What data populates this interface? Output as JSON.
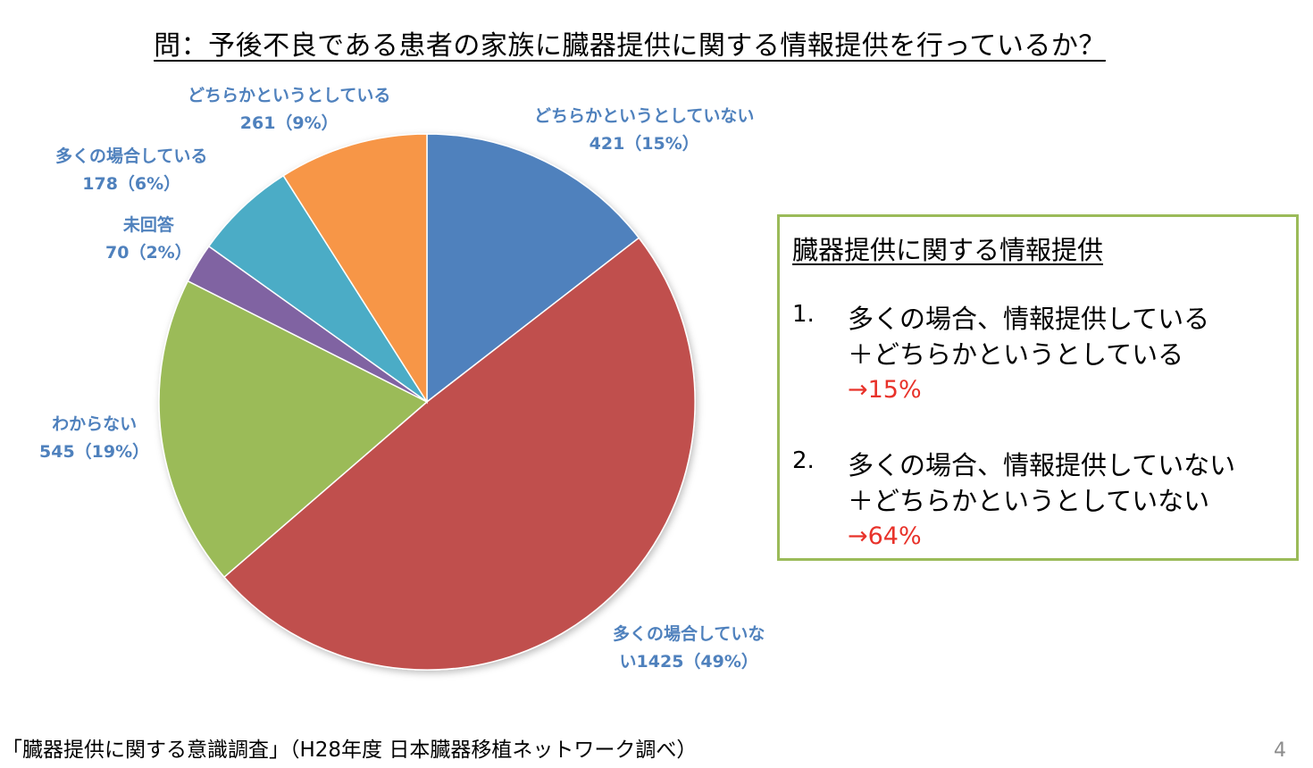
{
  "title": "問：予後不良である患者の家族に臓器提供に関する情報提供を行っているか？",
  "chart_data": {
    "type": "pie",
    "title": "問：予後不良である患者の家族に臓器提供に関する情報提供を行っているか？",
    "start": "12 o'clock, clockwise",
    "slices": [
      {
        "label": "どちらかというとしていない",
        "value": 421,
        "percent_label": "421（15%）",
        "color": "#4f81bd"
      },
      {
        "label": "多くの場合していない",
        "value": 1425,
        "percent_label": "い1425（49%）",
        "color": "#c0504d"
      },
      {
        "label": "わからない",
        "value": 545,
        "percent_label": "545（19%）",
        "color": "#9bbb59"
      },
      {
        "label": "未回答",
        "value": 70,
        "percent_label": "70（2%）",
        "color": "#8064a2"
      },
      {
        "label": "多くの場合している",
        "value": 178,
        "percent_label": "178（6%）",
        "color": "#4bacc6"
      },
      {
        "label": "どちらかというとしている",
        "value": 261,
        "percent_label": "261（9%）",
        "color": "#f79646"
      }
    ]
  },
  "labels": {
    "s0": [
      "どちらかというとしていない",
      "421（15%）"
    ],
    "s1": [
      "多くの場合していな",
      "い1425（49%）"
    ],
    "s2": [
      "わからない",
      "545（19%）"
    ],
    "s3": [
      "未回答",
      "70（2%）"
    ],
    "s4": [
      "多くの場合している",
      "178（6%）"
    ],
    "s5": [
      "どちらかというとしている",
      "261（9%）"
    ]
  },
  "summary": {
    "heading": "臓器提供に関する情報提供",
    "items": [
      {
        "num": "1.",
        "line1": "多くの場合、情報提供している",
        "line2": "＋どちらかというとしている",
        "result": "→15%"
      },
      {
        "num": "2.",
        "line1": "多くの場合、情報提供していない",
        "line2": "＋どちらかというとしていない",
        "result": "→64%"
      }
    ]
  },
  "source_note": "「臓器提供に関する意識調査」（H28年度 日本臓器移植ネットワーク調べ）",
  "page_number": "4"
}
